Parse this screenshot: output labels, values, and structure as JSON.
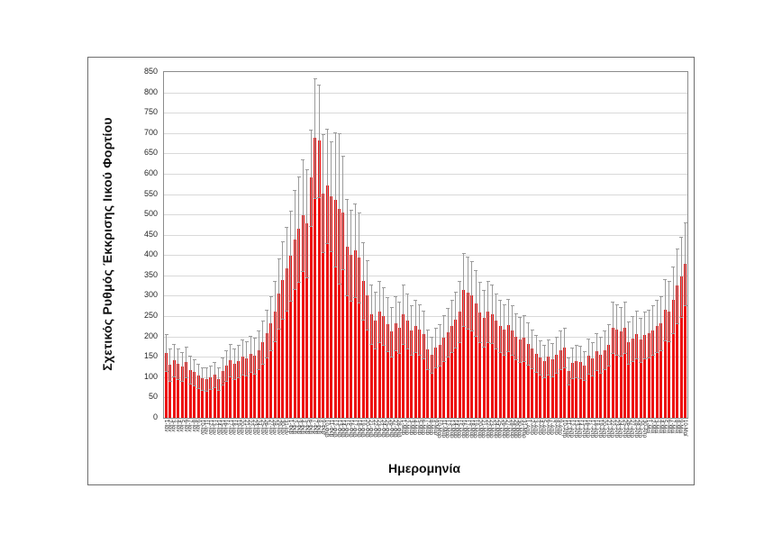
{
  "figure": {
    "background": "#ffffff",
    "frame_border_color": "#6e6e6e"
  },
  "chart_data": {
    "type": "bar",
    "title": "",
    "xlabel": "Ημερομηνία",
    "ylabel": "Σχετικός Ρυθμός Έκκρισης Ιικού Φορτίου",
    "ylim": [
      0,
      850
    ],
    "ytick_step": 50,
    "grid": true,
    "legend_position": "none",
    "bar_color": "#ed1111",
    "error_bar_color": "#9b9b9b",
    "gridline_color": "#d9d9d9",
    "axis_line_color": "#8c8c8c",
    "categories": [
      "1-Ιαν",
      "2-Ιαν",
      "3-Ιαν",
      "4-Ιαν",
      "5-Ιαν",
      "6-Ιαν",
      "7-Ιαν",
      "8-Ιαν",
      "9-Ιαν",
      "10-Ιαν",
      "11-Ιαν",
      "12-Ιαν",
      "13-Ιαν",
      "14-Ιαν",
      "15-Ιαν",
      "16-Ιαν",
      "17-Ιαν",
      "18-Ιαν",
      "19-Ιαν",
      "20-Ιαν",
      "21-Ιαν",
      "22-Ιαν",
      "23-Ιαν",
      "24-Ιαν",
      "25-Ιαν",
      "26-Ιαν",
      "27-Ιαν",
      "28-Ιαν",
      "29-Ιαν",
      "30-Ιαν",
      "31-Ιαν",
      "1-Φεβ",
      "2-Φεβ",
      "3-Φεβ",
      "4-Φεβ",
      "5-Φεβ",
      "6-Φεβ",
      "7-Φεβ",
      "8-Φεβ",
      "9-Φεβ",
      "10-Φεβ",
      "11-Φεβ",
      "12-Φεβ",
      "13-Φεβ",
      "14-Φεβ",
      "15-Φεβ",
      "16-Φεβ",
      "17-Φεβ",
      "18-Φεβ",
      "19-Φεβ",
      "20-Φεβ",
      "21-Φεβ",
      "22-Φεβ",
      "23-Φεβ",
      "24-Φεβ",
      "25-Φεβ",
      "26-Φεβ",
      "27-Φεβ",
      "28-Φεβ",
      "1-Μαρ",
      "2-Μαρ",
      "3-Μαρ",
      "4-Μαρ",
      "5-Μαρ",
      "6-Μαρ",
      "7-Μαρ",
      "8-Μαρ",
      "9-Μαρ",
      "10-Μαρ",
      "11-Μαρ",
      "12-Μαρ",
      "13-Μαρ",
      "14-Μαρ",
      "15-Μαρ",
      "16-Μαρ",
      "17-Μαρ",
      "18-Μαρ",
      "19-Μαρ",
      "20-Μαρ",
      "21-Μαρ",
      "22-Μαρ",
      "23-Μαρ",
      "24-Μαρ",
      "25-Μαρ",
      "26-Μαρ",
      "27-Μαρ",
      "28-Μαρ",
      "29-Μαρ",
      "30-Μαρ",
      "31-Μαρ",
      "1-Απρ",
      "2-Απρ",
      "3-Απρ",
      "4-Απρ",
      "5-Απρ",
      "6-Απρ",
      "7-Απρ",
      "8-Απρ",
      "9-Απρ",
      "10-Απρ",
      "11-Απρ",
      "12-Απρ",
      "13-Απρ",
      "14-Απρ",
      "15-Απρ",
      "16-Απρ",
      "17-Απρ",
      "18-Απρ",
      "19-Απρ",
      "20-Απρ",
      "21-Απρ",
      "22-Απρ",
      "23-Απρ",
      "24-Απρ",
      "25-Απρ",
      "26-Απρ",
      "27-Απρ",
      "28-Απρ",
      "29-Απρ",
      "30-Απρ",
      "1-Μαϊ",
      "2-Μαϊ",
      "3-Μαϊ",
      "4-Μαϊ",
      "5-Μαϊ",
      "6-Μαϊ",
      "7-Μαϊ",
      "8-Μαϊ",
      "9-Μαϊ",
      "10-Μαϊ"
    ],
    "values": [
      160,
      130,
      142,
      133,
      126,
      137,
      118,
      112,
      103,
      97,
      95,
      99,
      106,
      96,
      116,
      128,
      141,
      133,
      139,
      150,
      147,
      157,
      152,
      167,
      185,
      207,
      232,
      262,
      305,
      338,
      367,
      398,
      438,
      464,
      498,
      478,
      590,
      688,
      681,
      552,
      570,
      545,
      536,
      514,
      505,
      420,
      400,
      412,
      394,
      336,
      302,
      255,
      240,
      262,
      250,
      230,
      212,
      232,
      222,
      255,
      238,
      215,
      225,
      218,
      205,
      168,
      155,
      172,
      180,
      196,
      210,
      225,
      242,
      262,
      315,
      308,
      300,
      282,
      260,
      245,
      262,
      255,
      238,
      225,
      218,
      228,
      215,
      200,
      192,
      196,
      182,
      170,
      158,
      148,
      140,
      150,
      143,
      155,
      167,
      172,
      115,
      135,
      140,
      137,
      128,
      152,
      145,
      163,
      155,
      167,
      180,
      222,
      218,
      212,
      222,
      185,
      195,
      205,
      192,
      204,
      207,
      215,
      225,
      233,
      265,
      262,
      290,
      325,
      347,
      378
    ],
    "errors": [
      45,
      40,
      40,
      38,
      36,
      38,
      34,
      32,
      30,
      28,
      28,
      29,
      31,
      28,
      33,
      37,
      40,
      38,
      40,
      43,
      42,
      45,
      44,
      48,
      53,
      59,
      66,
      74,
      86,
      95,
      103,
      111,
      122,
      129,
      138,
      133,
      118,
      147,
      139,
      145,
      140,
      135,
      165,
      185,
      140,
      118,
      112,
      115,
      110,
      95,
      86,
      73,
      69,
      75,
      71,
      66,
      61,
      66,
      63,
      73,
      68,
      61,
      64,
      62,
      58,
      48,
      44,
      49,
      51,
      56,
      60,
      64,
      69,
      75,
      90,
      88,
      85,
      80,
      74,
      70,
      75,
      72,
      68,
      64,
      62,
      65,
      61,
      57,
      55,
      56,
      52,
      48,
      45,
      42,
      40,
      43,
      41,
      44,
      47,
      49,
      33,
      38,
      40,
      39,
      36,
      43,
      41,
      46,
      44,
      47,
      51,
      63,
      62,
      60,
      63,
      52,
      55,
      58,
      54,
      58,
      59,
      61,
      64,
      66,
      75,
      74,
      82,
      92,
      98,
      102
    ]
  }
}
